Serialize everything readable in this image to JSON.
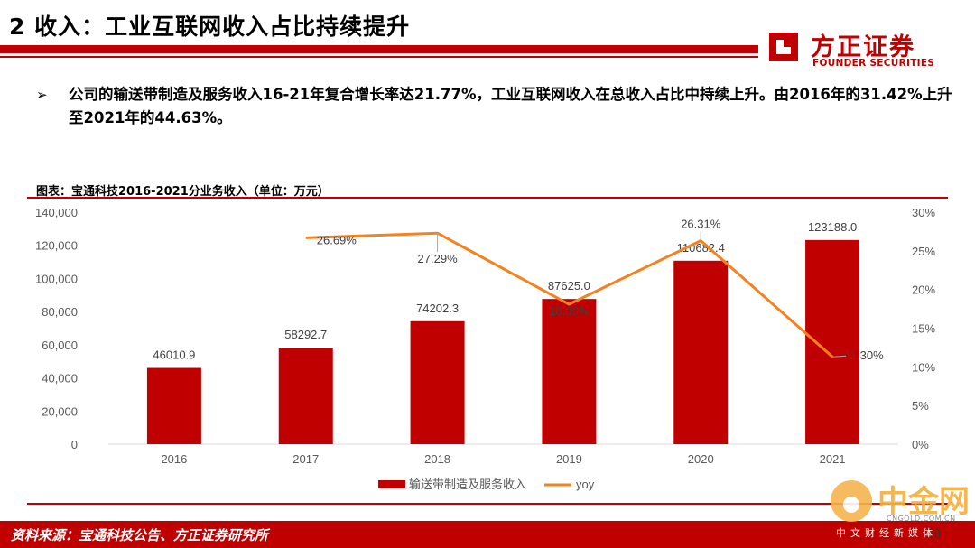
{
  "header": {
    "title": "2 收入：工业互联网收入占比持续提升",
    "logo_cn": "方正证券",
    "logo_en": "FOUNDER SECURITIES"
  },
  "bullet": {
    "arrow": "➢",
    "text": "公司的输送带制造及服务收入16-21年复合增长率达21.77%，工业互联网收入在总收入占比中持续上升。由2016年的31.42%上升至2021年的44.63%。"
  },
  "caption": "图表：宝通科技2016-2021分业务收入（单位：万元）",
  "chart_data": {
    "type": "bar",
    "categories": [
      "2016",
      "2017",
      "2018",
      "2019",
      "2020",
      "2021"
    ],
    "series": [
      {
        "name": "输送带制造及服务收入",
        "type": "bar",
        "axis": "left",
        "values": [
          46010.9,
          58292.7,
          74202.3,
          87625.0,
          110682.4,
          123188.0
        ],
        "labels": [
          "46010.9",
          "58292.7",
          "74202.3",
          "87625.0",
          "110682.4",
          "123188.0"
        ],
        "color": "#c00000"
      },
      {
        "name": "yoy",
        "type": "line",
        "axis": "right",
        "values": [
          null,
          26.69,
          27.29,
          18.09,
          26.31,
          11.3
        ],
        "labels": [
          "",
          "26.69%",
          "27.29%",
          "18.09%",
          "26.31%",
          "11.30%"
        ],
        "color": "#f5821f"
      }
    ],
    "y_left": {
      "min": 0,
      "max": 140000,
      "step": 20000,
      "ticks": [
        "0",
        "20,000",
        "40,000",
        "60,000",
        "80,000",
        "100,000",
        "120,000",
        "140,000"
      ]
    },
    "y_right": {
      "min": 0,
      "max": 30,
      "step": 5,
      "ticks": [
        "0%",
        "5%",
        "10%",
        "15%",
        "20%",
        "25%",
        "30%"
      ]
    },
    "grid": false,
    "legend_position": "bottom"
  },
  "footer": {
    "source": "资料来源：宝通科技公告、方正证券研究所",
    "page": "20"
  },
  "watermark": {
    "text": "中金网",
    "domain": "CNGOLD.COM.CN",
    "sub": "中文财经新媒体"
  },
  "colors": {
    "brand": "#c00000",
    "line": "#f5821f"
  }
}
